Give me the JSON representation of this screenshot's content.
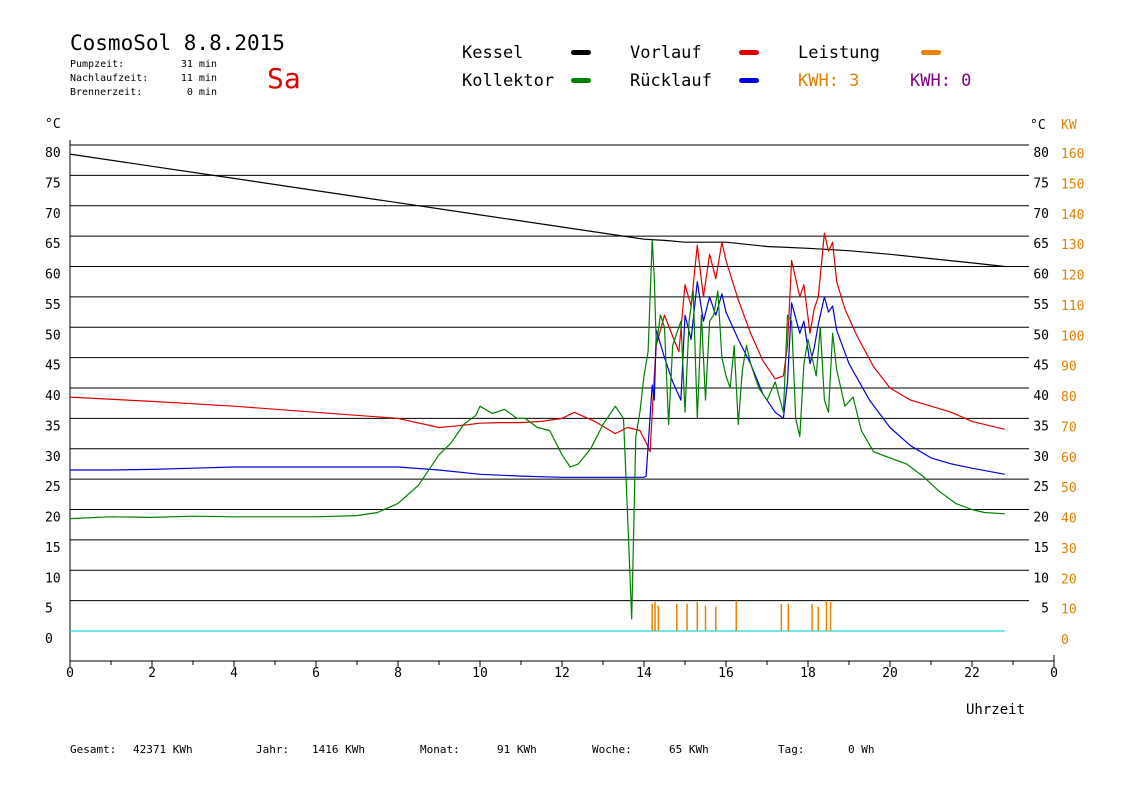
{
  "header": {
    "title": "CosmoSol 8.8.2015",
    "day": "Sa",
    "info": [
      {
        "label": "Pumpzeit:",
        "value": "31 min"
      },
      {
        "label": "Nachlaufzeit:",
        "value": "11 min"
      },
      {
        "label": "Brennerzeit:",
        "value": "0 min"
      }
    ]
  },
  "legend": [
    {
      "label": "Kessel",
      "color": "#000000"
    },
    {
      "label": "Vorlauf",
      "color": "#e00000"
    },
    {
      "label": "Leistung",
      "color": "#f08000"
    },
    {
      "label": "Kollektor",
      "color": "#008000"
    },
    {
      "label": "Rücklauf",
      "color": "#0000e0"
    }
  ],
  "kwh": [
    {
      "text": "KWH: 3",
      "color": "#e08000"
    },
    {
      "text": "KWH: 0",
      "color": "#800080"
    }
  ],
  "colors": {
    "grid": "#000000",
    "kw_axis": "#e08000",
    "baseline": "#40e0e0",
    "day": "#e00000"
  },
  "chart_data": {
    "type": "line",
    "xlabel": "Uhrzeit",
    "ylabel": "°C",
    "ylabel_right": [
      "°C",
      "KW"
    ],
    "xlim": [
      0,
      24
    ],
    "ylim": [
      0,
      80
    ],
    "x_ticks": [
      "0",
      "2",
      "4",
      "6",
      "8",
      "10",
      "12",
      "14",
      "16",
      "18",
      "20",
      "22",
      "0"
    ],
    "y_ticks": [
      "0",
      "5",
      "10",
      "15",
      "20",
      "25",
      "30",
      "35",
      "40",
      "45",
      "50",
      "55",
      "60",
      "65",
      "70",
      "75",
      "80"
    ],
    "kw_ticks": [
      "0",
      "10",
      "20",
      "30",
      "40",
      "50",
      "60",
      "70",
      "80",
      "90",
      "100",
      "110",
      "120",
      "130",
      "140",
      "150",
      "160"
    ],
    "grid": true,
    "series": [
      {
        "name": "Kessel",
        "color": "#000000",
        "x": [
          0,
          2,
          4,
          6,
          8,
          10,
          12,
          14,
          14.5,
          15,
          15.5,
          16,
          17,
          18,
          19,
          20,
          21,
          22,
          22.8
        ],
        "y": [
          78.5,
          76.5,
          74.5,
          72.5,
          70.5,
          68.5,
          66.5,
          64.5,
          64.3,
          64.0,
          64.0,
          64.0,
          63.3,
          63.0,
          62.6,
          62.0,
          61.3,
          60.6,
          60
        ]
      },
      {
        "name": "Vorlauf",
        "color": "#e00000",
        "x": [
          0,
          2,
          4,
          6,
          8,
          9,
          9.5,
          10,
          10.5,
          11,
          11.5,
          12,
          12.3,
          12.8,
          13.3,
          13.6,
          13.9,
          14.05,
          14.15,
          14.25,
          14.3,
          14.5,
          14.7,
          14.85,
          15.0,
          15.15,
          15.3,
          15.45,
          15.6,
          15.75,
          15.9,
          16.0,
          16.3,
          16.6,
          16.9,
          17.2,
          17.4,
          17.5,
          17.6,
          17.8,
          17.9,
          18.05,
          18.15,
          18.25,
          18.4,
          18.5,
          18.6,
          18.7,
          18.9,
          19.2,
          19.6,
          20.0,
          20.5,
          21,
          21.5,
          22,
          22.8
        ],
        "y": [
          38.5,
          37.8,
          37.0,
          36.0,
          35.0,
          33.5,
          33.8,
          34.2,
          34.3,
          34.3,
          34.5,
          35.0,
          36.0,
          34.5,
          32.5,
          33.5,
          33.0,
          31.0,
          29.5,
          42.0,
          47.0,
          52.0,
          48.5,
          46.0,
          57.0,
          53.5,
          63.5,
          55.0,
          62.0,
          58.0,
          64.0,
          61.0,
          54.5,
          49.0,
          44.5,
          41.5,
          42.0,
          47.0,
          61.0,
          55.0,
          57.0,
          49.0,
          53.0,
          55.0,
          65.5,
          62.5,
          64.0,
          57.5,
          53.0,
          48.5,
          43.5,
          40.0,
          38.0,
          37.0,
          36.0,
          34.5,
          33.2
        ]
      },
      {
        "name": "Rücklauf",
        "color": "#0000e0",
        "x": [
          0,
          1,
          2,
          3,
          4,
          5,
          6,
          7,
          8,
          9,
          10,
          11,
          12,
          12.5,
          14.0,
          14.05,
          14.2,
          14.25,
          14.3,
          14.5,
          14.7,
          14.9,
          15.0,
          15.15,
          15.3,
          15.45,
          15.6,
          15.75,
          15.9,
          16.0,
          16.3,
          16.6,
          16.9,
          17.2,
          17.4,
          17.5,
          17.6,
          17.8,
          17.9,
          18.05,
          18.15,
          18.25,
          18.4,
          18.5,
          18.6,
          18.7,
          19.0,
          19.5,
          20,
          20.5,
          21,
          21.5,
          22,
          22.8
        ],
        "y": [
          26.5,
          26.5,
          26.6,
          26.8,
          27.0,
          27.0,
          27.0,
          27.0,
          27.0,
          26.5,
          25.8,
          25.5,
          25.3,
          25.3,
          25.3,
          25.5,
          40.5,
          38.0,
          49.5,
          45.0,
          41.0,
          38.0,
          52.0,
          48.0,
          57.5,
          51.0,
          55.0,
          52.0,
          55.5,
          52.5,
          48.0,
          44.0,
          39.0,
          36.0,
          35.0,
          41.0,
          54.0,
          49.0,
          51.0,
          44.0,
          46.5,
          50.5,
          55.0,
          52.5,
          53.5,
          49.5,
          44.0,
          38.0,
          33.5,
          30.5,
          28.5,
          27.5,
          26.8,
          25.8
        ]
      },
      {
        "name": "Kollektor",
        "color": "#008000",
        "x": [
          0,
          1,
          2,
          3,
          4,
          5,
          6,
          7,
          7.5,
          8,
          8.5,
          9,
          9.3,
          9.6,
          9.9,
          10.0,
          10.3,
          10.6,
          10.9,
          11.1,
          11.4,
          11.7,
          12.0,
          12.2,
          12.4,
          12.7,
          13.0,
          13.3,
          13.5,
          13.6,
          13.7,
          13.8,
          13.9,
          14.0,
          14.1,
          14.2,
          14.25,
          14.3,
          14.4,
          14.5,
          14.6,
          14.7,
          14.8,
          14.9,
          15.0,
          15.1,
          15.2,
          15.3,
          15.4,
          15.5,
          15.6,
          15.7,
          15.8,
          15.9,
          16.0,
          16.1,
          16.2,
          16.3,
          16.4,
          16.5,
          16.6,
          16.8,
          17.0,
          17.2,
          17.4,
          17.5,
          17.6,
          17.7,
          17.8,
          17.9,
          18.0,
          18.1,
          18.2,
          18.3,
          18.4,
          18.5,
          18.6,
          18.7,
          18.9,
          19.1,
          19.3,
          19.6,
          20.0,
          20.4,
          20.8,
          21.2,
          21.6,
          22.0,
          22.3,
          22.8
        ],
        "y": [
          18.5,
          18.8,
          18.7,
          18.9,
          18.8,
          18.8,
          18.8,
          19.0,
          19.5,
          21.0,
          24.0,
          29.0,
          31.0,
          34.0,
          35.5,
          37.0,
          35.8,
          36.5,
          35.0,
          35.0,
          33.5,
          33.0,
          29.0,
          27.0,
          27.5,
          30.0,
          34.0,
          37.0,
          35.0,
          19.0,
          2.0,
          32.0,
          36.0,
          42.0,
          46.0,
          64.5,
          58.0,
          47.0,
          52.0,
          50.0,
          34.0,
          47.0,
          49.0,
          51.0,
          36.0,
          51.0,
          56.0,
          35.0,
          52.0,
          38.0,
          51.0,
          52.0,
          56.0,
          45.0,
          42.0,
          40.0,
          47.0,
          34.0,
          43.0,
          47.0,
          44.0,
          40.0,
          38.0,
          41.0,
          36.0,
          52.0,
          51.0,
          35.0,
          32.0,
          44.0,
          48.0,
          45.0,
          42.0,
          50.0,
          38.0,
          36.0,
          49.0,
          43.0,
          37.0,
          38.5,
          33.0,
          29.5,
          28.5,
          27.5,
          25.5,
          23.0,
          21.0,
          20.0,
          19.5,
          19.3
        ]
      },
      {
        "name": "Leistung",
        "color": "#f08000",
        "x": [
          14.2,
          14.27,
          14.35,
          14.8,
          15.05,
          15.3,
          15.5,
          15.75,
          16.25,
          17.35,
          17.52,
          18.1,
          18.25,
          18.45,
          18.55
        ],
        "y": [
          4.5,
          4.8,
          4.2,
          4.5,
          4.5,
          4.8,
          4.2,
          4.0,
          5.0,
          4.5,
          4.5,
          4.5,
          4.0,
          5.0,
          4.8
        ]
      }
    ]
  },
  "footer": [
    {
      "label": "Gesamt:",
      "value": "42371 KWh"
    },
    {
      "label": "Jahr:",
      "value": "1416 KWh"
    },
    {
      "label": "Monat:",
      "value": "91 KWh"
    },
    {
      "label": "Woche:",
      "value": "65 KWh"
    },
    {
      "label": "Tag:",
      "value": "0 Wh"
    }
  ]
}
